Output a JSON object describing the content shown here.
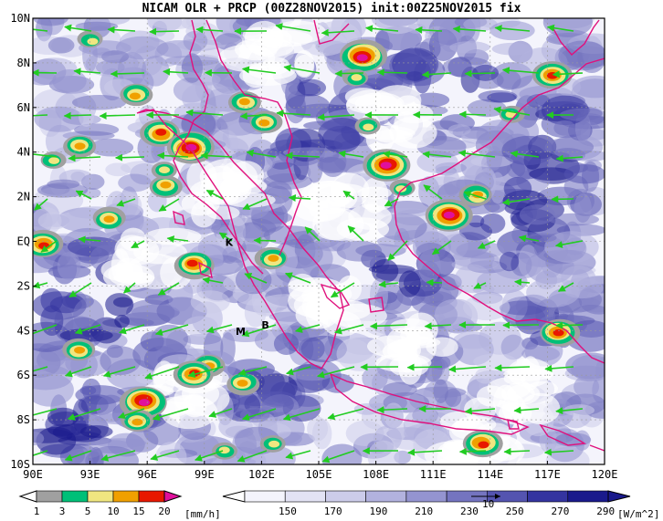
{
  "title": "NICAM OLR + PRCP (00Z28NOV2015) init:00Z25NOV2015 fix",
  "lon_ticks": [
    "90E",
    "93E",
    "96E",
    "99E",
    "102E",
    "105E",
    "108E",
    "111E",
    "114E",
    "117E",
    "120E"
  ],
  "lat_ticks": [
    "10N",
    "8N",
    "6N",
    "4N",
    "2N",
    "EQ",
    "2S",
    "4S",
    "6S",
    "8S",
    "10S"
  ],
  "sites": [
    {
      "label": "K",
      "lon": 100.3,
      "lat": -0.2
    },
    {
      "label": "M",
      "lon": 100.9,
      "lat": -4.2
    },
    {
      "label": "B",
      "lon": 102.2,
      "lat": -3.9
    }
  ],
  "precip_legend": {
    "unit": "[mm/h]",
    "levels": [
      "1",
      "3",
      "5",
      "10",
      "15",
      "20"
    ],
    "colors": [
      "#a0a0a0",
      "#00c078",
      "#f0e680",
      "#f0a000",
      "#e81800",
      "#e0109c"
    ]
  },
  "olr_legend": {
    "unit": "[W/m^2]",
    "levels": [
      "150",
      "170",
      "190",
      "210",
      "230",
      "250",
      "270",
      "290"
    ],
    "colors": [
      "#f4f4fc",
      "#e2e2f4",
      "#ccccea",
      "#b2b2de",
      "#9494d0",
      "#7474c0",
      "#5454b0",
      "#3434a0",
      "#1a1a8c"
    ]
  },
  "vector_reference": {
    "label": "10"
  },
  "colors": {
    "wind": "#22cc22",
    "coast": "#e0107c",
    "grid": "#9a9a9a"
  }
}
